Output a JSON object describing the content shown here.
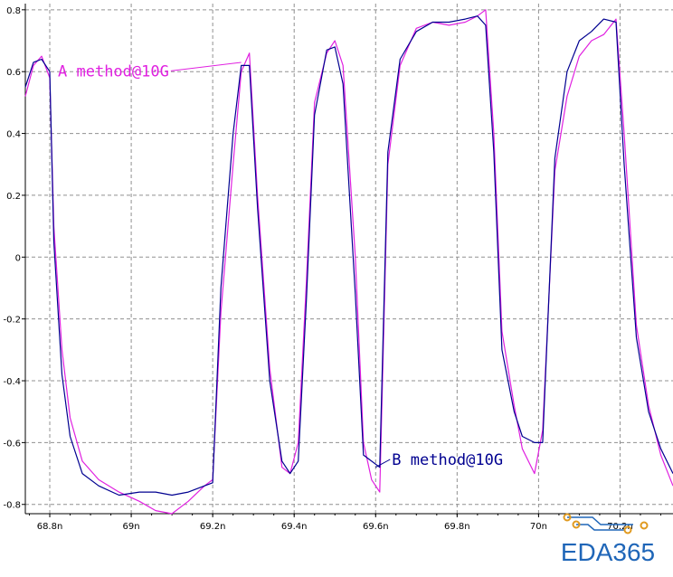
{
  "chart_data": {
    "type": "line",
    "title": "",
    "xlabel": "",
    "ylabel": "",
    "xlim": [
      68.74,
      70.33
    ],
    "ylim": [
      -0.83,
      0.82
    ],
    "grid": true,
    "y_ticks": [
      0.8,
      0.6,
      0.4,
      0.2,
      0,
      -0.2,
      -0.4,
      -0.6,
      -0.8
    ],
    "y_tick_labels": [
      "0.8",
      "0.6",
      "0.4",
      "0.2",
      "0",
      "-0.2",
      "-0.4",
      "-0.6",
      "-0.8"
    ],
    "x_ticks": [
      68.8,
      69.0,
      69.2,
      69.4,
      69.6,
      69.8,
      70.0,
      70.2
    ],
    "x_tick_labels": [
      "68.8n",
      "69n",
      "69.2n",
      "69.4n",
      "69.6n",
      "69.8n",
      "70n",
      "70.2n"
    ],
    "series": [
      {
        "color": "#e020e0",
        "x": [
          68.74,
          68.76,
          68.78,
          68.8,
          68.81,
          68.83,
          68.85,
          68.88,
          68.92,
          68.97,
          69.02,
          69.06,
          69.1,
          69.14,
          69.18,
          69.2,
          69.22,
          69.25,
          69.27,
          69.29,
          69.31,
          69.34,
          69.37,
          69.39,
          69.41,
          69.43,
          69.45,
          69.48,
          69.5,
          69.52,
          69.55,
          69.57,
          69.59,
          69.61,
          69.63,
          69.66,
          69.7,
          69.74,
          69.78,
          69.82,
          69.85,
          69.87,
          69.89,
          69.91,
          69.94,
          69.96,
          69.99,
          70.01,
          70.04,
          70.07,
          70.1,
          70.13,
          70.16,
          70.19,
          70.21,
          70.24,
          70.27,
          70.3,
          70.33
        ],
        "y": [
          0.52,
          0.62,
          0.65,
          0.58,
          0.1,
          -0.3,
          -0.52,
          -0.66,
          -0.72,
          -0.76,
          -0.79,
          -0.82,
          -0.83,
          -0.79,
          -0.74,
          -0.72,
          -0.18,
          0.3,
          0.6,
          0.66,
          0.2,
          -0.36,
          -0.68,
          -0.7,
          -0.6,
          -0.08,
          0.5,
          0.66,
          0.7,
          0.62,
          0.0,
          -0.6,
          -0.72,
          -0.76,
          0.3,
          0.62,
          0.74,
          0.76,
          0.75,
          0.76,
          0.78,
          0.8,
          0.4,
          -0.24,
          -0.48,
          -0.62,
          -0.7,
          -0.56,
          0.28,
          0.52,
          0.65,
          0.7,
          0.72,
          0.77,
          0.4,
          -0.22,
          -0.48,
          -0.64,
          -0.74
        ]
      },
      {
        "color": "#000090",
        "x": [
          68.74,
          68.76,
          68.78,
          68.8,
          68.81,
          68.83,
          68.85,
          68.88,
          68.92,
          68.97,
          69.02,
          69.06,
          69.1,
          69.14,
          69.18,
          69.2,
          69.22,
          69.25,
          69.27,
          69.29,
          69.31,
          69.34,
          69.37,
          69.39,
          69.41,
          69.43,
          69.45,
          69.48,
          69.5,
          69.52,
          69.55,
          69.57,
          69.59,
          69.61,
          69.63,
          69.66,
          69.7,
          69.74,
          69.78,
          69.82,
          69.85,
          69.87,
          69.89,
          69.91,
          69.94,
          69.96,
          69.99,
          70.01,
          70.04,
          70.07,
          70.1,
          70.13,
          70.16,
          70.19,
          70.21,
          70.24,
          70.27,
          70.3,
          70.33
        ],
        "y": [
          0.55,
          0.63,
          0.64,
          0.6,
          0.05,
          -0.38,
          -0.58,
          -0.7,
          -0.74,
          -0.77,
          -0.76,
          -0.76,
          -0.77,
          -0.76,
          -0.74,
          -0.73,
          -0.1,
          0.4,
          0.62,
          0.62,
          0.16,
          -0.4,
          -0.66,
          -0.7,
          -0.66,
          -0.14,
          0.46,
          0.67,
          0.68,
          0.56,
          -0.12,
          -0.64,
          -0.66,
          -0.68,
          0.34,
          0.64,
          0.73,
          0.76,
          0.76,
          0.77,
          0.78,
          0.75,
          0.34,
          -0.3,
          -0.5,
          -0.58,
          -0.6,
          -0.6,
          0.32,
          0.6,
          0.7,
          0.73,
          0.77,
          0.76,
          0.3,
          -0.26,
          -0.5,
          -0.62,
          -0.7
        ]
      }
    ],
    "annotations": [
      {
        "text": "A method@10G",
        "color": "#e020e0",
        "x": 68.82,
        "y": 0.585,
        "target": [
          69.27,
          0.63
        ]
      },
      {
        "text": "B method@10G",
        "color": "#000090",
        "x": 69.64,
        "y": -0.672,
        "target": [
          69.6,
          -0.68
        ]
      }
    ]
  },
  "watermark": {
    "text": "EDA365",
    "color": "#1f66b8",
    "trace_color": "#e09a20"
  }
}
